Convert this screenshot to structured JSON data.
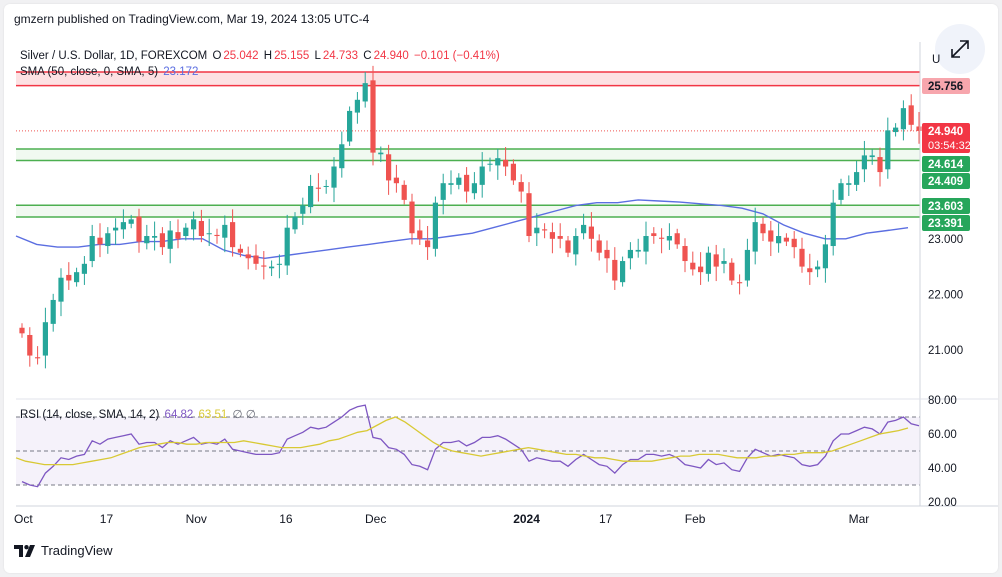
{
  "header": {
    "published": "gmzern published on TradingView.com, Mar 19, 2024 13:05 UTC-4"
  },
  "legend": {
    "symbol": "Silver / U.S. Dollar, 1D, FOREXCOM",
    "o_label": "O",
    "o_value": "25.042",
    "h_label": "H",
    "h_value": "25.155",
    "l_label": "L",
    "l_value": "24.733",
    "c_label": "C",
    "c_value": "24.940",
    "change": "−0.101 (−0.41%)",
    "sma_label": "SMA (50, close, 0, SMA, 5)",
    "sma_value": "23.172",
    "rsi_label": "RSI (14, close, SMA, 14, 2)",
    "rsi_value": "64.82",
    "rsi_ma_value": "63.51",
    "rsi_extra": "∅ ∅"
  },
  "footer": {
    "brand": "TradingView"
  },
  "colors": {
    "up": "#26a69a",
    "down": "#ef5350",
    "sma": "#5b6ee1",
    "rsi": "#7e57c2",
    "rsi_ma": "#d8c934",
    "resistance": "#f23645",
    "support": "#4caf50"
  },
  "icons": {
    "expand": "expand-arrows-icon",
    "logo": "tradingview-logo-icon"
  },
  "chart_data": {
    "type": "candlestick",
    "symbol": "XAGUSD",
    "timeframe": "1D",
    "price_axis": {
      "range": [
        20.0,
        26.5
      ],
      "ticks": [
        "21.000",
        "22.000",
        "23.000"
      ],
      "partial_tick": "U"
    },
    "x_ticks": [
      {
        "label": "Oct",
        "index": 0
      },
      {
        "label": "17",
        "index": 11
      },
      {
        "label": "Nov",
        "index": 22
      },
      {
        "label": "16",
        "index": 34
      },
      {
        "label": "Dec",
        "index": 45
      },
      {
        "label": "2024",
        "index": 64
      },
      {
        "label": "17",
        "index": 75
      },
      {
        "label": "Feb",
        "index": 86
      },
      {
        "label": "Mar",
        "index": 107
      }
    ],
    "price_labels": [
      {
        "value": 25.756,
        "text": "25.756",
        "type": "resistance"
      },
      {
        "value": 24.94,
        "text": "24.940",
        "sub": "03:54:32",
        "type": "last"
      },
      {
        "value": 24.614,
        "text": "24.614",
        "type": "support"
      },
      {
        "value": 24.409,
        "text": "24.409",
        "type": "support"
      },
      {
        "value": 23.603,
        "text": "23.603",
        "type": "support"
      },
      {
        "value": 23.391,
        "text": "23.391",
        "type": "support"
      }
    ],
    "zones": [
      {
        "from": 25.756,
        "to": 26.0,
        "type": "resistance"
      },
      {
        "from": 24.409,
        "to": 24.614,
        "type": "support"
      },
      {
        "from": 23.391,
        "to": 23.603,
        "type": "support"
      }
    ],
    "closes": [
      21.3,
      20.9,
      20.85,
      21.5,
      21.9,
      22.3,
      22.25,
      22.4,
      22.55,
      23.05,
      22.9,
      23.1,
      23.2,
      23.3,
      23.35,
      22.95,
      23.05,
      23.05,
      22.85,
      23.15,
      23.0,
      23.2,
      23.35,
      23.05,
      23.1,
      23.05,
      23.25,
      22.85,
      22.75,
      22.65,
      22.55,
      22.5,
      22.5,
      22.55,
      23.2,
      23.4,
      23.6,
      23.95,
      23.9,
      23.95,
      24.3,
      24.7,
      25.3,
      25.5,
      25.8,
      24.55,
      24.55,
      24.05,
      24.0,
      23.7,
      23.1,
      23.0,
      22.85,
      23.65,
      24.0,
      24.0,
      24.1,
      23.85,
      24.0,
      24.3,
      24.35,
      24.45,
      24.3,
      24.05,
      23.85,
      23.05,
      23.2,
      23.15,
      23.0,
      23.0,
      22.75,
      23.05,
      23.25,
      23.0,
      22.75,
      22.65,
      22.25,
      22.6,
      22.8,
      22.8,
      23.05,
      23.05,
      23.0,
      23.05,
      22.9,
      22.6,
      22.45,
      22.4,
      22.75,
      22.5,
      22.6,
      22.25,
      22.2,
      22.8,
      23.3,
      23.1,
      22.95,
      23.05,
      22.95,
      22.85,
      22.5,
      22.4,
      22.5,
      22.9,
      23.65,
      24.0,
      24.0,
      24.2,
      24.5,
      24.5,
      24.2,
      24.95,
      25.0,
      25.35,
      25.05,
      24.94
    ],
    "sma": [
      23.05,
      22.9,
      22.85,
      22.85,
      22.9,
      22.9,
      22.95,
      22.95,
      23.0,
      23.0,
      22.8,
      22.7,
      22.65,
      22.7,
      22.75,
      22.8,
      22.85,
      22.9,
      22.95,
      23.0,
      23.0,
      23.05,
      23.1,
      23.2,
      23.3,
      23.4,
      23.5,
      23.6,
      23.65,
      23.65,
      23.7,
      23.68,
      23.66,
      23.63,
      23.6,
      23.55,
      23.45,
      23.25,
      23.1,
      23.0,
      23.0,
      23.1,
      23.15,
      23.2
    ],
    "rsi": [
      32,
      30,
      29,
      37,
      41,
      46,
      45,
      47,
      48,
      56,
      54,
      57,
      58,
      59,
      60,
      54,
      55,
      55,
      52,
      56,
      54,
      56,
      58,
      54,
      55,
      54,
      57,
      51,
      50,
      49,
      48,
      48,
      48,
      49,
      57,
      59,
      61,
      64,
      63,
      64,
      67,
      70,
      74,
      76,
      77,
      58,
      57,
      52,
      51,
      48,
      42,
      41,
      39,
      51,
      55,
      55,
      56,
      53,
      55,
      58,
      58,
      59,
      57,
      54,
      51,
      44,
      46,
      45,
      44,
      44,
      41,
      45,
      48,
      45,
      42,
      41,
      37,
      42,
      45,
      45,
      48,
      48,
      47,
      48,
      46,
      42,
      41,
      40,
      45,
      42,
      43,
      39,
      38,
      46,
      51,
      49,
      47,
      48,
      47,
      46,
      42,
      41,
      42,
      47,
      56,
      60,
      60,
      62,
      64,
      63,
      60,
      67,
      68,
      70,
      66,
      64.82
    ],
    "rsi_ma": [
      46,
      44,
      43,
      42,
      42,
      42,
      42,
      43,
      44,
      45,
      46,
      48,
      50,
      52,
      53,
      54,
      55,
      55,
      54,
      54,
      55,
      55,
      55,
      55,
      56,
      55,
      54,
      53,
      52,
      52,
      52,
      53,
      54,
      56,
      57,
      59,
      61,
      62,
      65,
      68,
      70,
      67,
      63,
      59,
      55,
      52,
      50,
      49,
      48,
      47,
      48,
      49,
      50,
      51,
      52,
      51,
      50,
      49,
      48,
      48,
      47,
      46,
      46,
      45,
      44,
      44,
      44,
      44,
      45,
      46,
      47,
      47,
      48,
      48,
      48,
      47,
      46,
      46,
      46,
      47,
      47,
      48,
      48,
      49,
      49,
      49,
      50,
      52,
      54,
      56,
      58,
      60,
      61,
      62,
      63.51
    ],
    "rsi_axis": {
      "ticks": [
        "80.00",
        "60.00",
        "40.00",
        "20.00"
      ],
      "levels": [
        70,
        50,
        30
      ]
    }
  }
}
